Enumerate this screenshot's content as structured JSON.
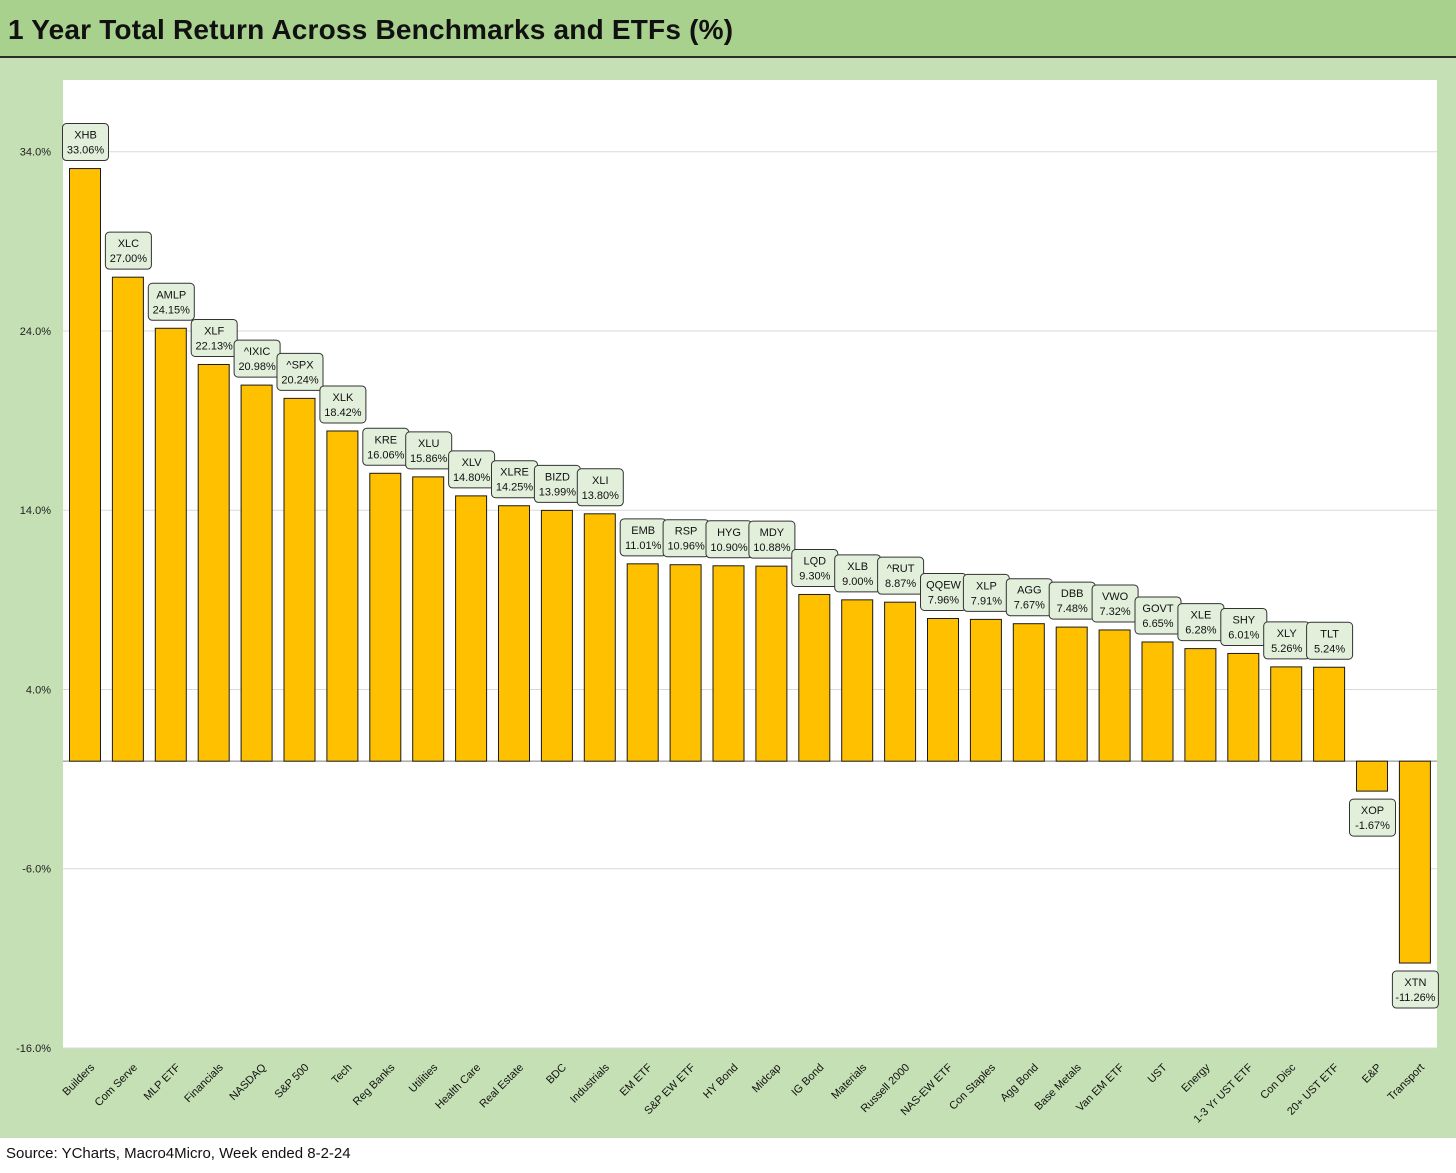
{
  "title": "1 Year Total Return Across Benchmarks and ETFs (%)",
  "source": "Source: YCharts, Macro4Micro, Week ended 8-2-24",
  "colors": {
    "bar": "#ffc000",
    "bar_stroke": "#1a1a1a",
    "label_fill": "#e2efda",
    "frame": "#c5e0b4",
    "title_bar": "#a9d18e",
    "grid": "#d9d9d9"
  },
  "chart_data": {
    "type": "bar",
    "title": "1 Year Total Return Across Benchmarks and ETFs (%)",
    "xlabel": "",
    "ylabel": "",
    "ylim": [
      -16,
      38
    ],
    "yticks": [
      -16,
      -6,
      4,
      14,
      24,
      34
    ],
    "ytick_labels": [
      "-16.0%",
      "-6.0%",
      "4.0%",
      "14.0%",
      "24.0%",
      "34.0%"
    ],
    "grid": true,
    "categories": [
      "Builders",
      "Com Serve",
      "MLP ETF",
      "Financials",
      "NASDAQ",
      "S&P 500",
      "Tech",
      "Reg Banks",
      "Utilities",
      "Health Care",
      "Real Estate",
      "BDC",
      "Industrials",
      "EM ETF",
      "S&P EW ETF",
      "HY Bond",
      "Midcap",
      "IG Bond",
      "Materials",
      "Russell 2000",
      "NAS-EW ETF",
      "Con Staples",
      "Agg Bond",
      "Base Metals",
      "Van EM ETF",
      "UST",
      "Energy",
      "1-3 Yr UST ETF",
      "Con Disc",
      "20+ UST ETF",
      "E&P",
      "Transport"
    ],
    "tickers": [
      "XHB",
      "XLC",
      "AMLP",
      "XLF",
      "^IXIC",
      "^SPX",
      "XLK",
      "KRE",
      "XLU",
      "XLV",
      "XLRE",
      "BIZD",
      "XLI",
      "EMB",
      "RSP",
      "HYG",
      "MDY",
      "LQD",
      "XLB",
      "^RUT",
      "QQEW",
      "XLP",
      "AGG",
      "DBB",
      "VWO",
      "GOVT",
      "XLE",
      "SHY",
      "XLY",
      "TLT",
      "XOP",
      "XTN"
    ],
    "values": [
      33.06,
      27.0,
      24.15,
      22.13,
      20.98,
      20.24,
      18.42,
      16.06,
      15.86,
      14.8,
      14.25,
      13.99,
      13.8,
      11.01,
      10.96,
      10.9,
      10.88,
      9.3,
      9.0,
      8.87,
      7.96,
      7.91,
      7.67,
      7.48,
      7.32,
      6.65,
      6.28,
      6.01,
      5.26,
      5.24,
      -1.67,
      -11.26
    ],
    "value_labels": [
      "33.06%",
      "27.00%",
      "24.15%",
      "22.13%",
      "20.98%",
      "20.24%",
      "18.42%",
      "16.06%",
      "15.86%",
      "14.80%",
      "14.25%",
      "13.99%",
      "13.80%",
      "11.01%",
      "10.96%",
      "10.90%",
      "10.88%",
      "9.30%",
      "9.00%",
      "8.87%",
      "7.96%",
      "7.91%",
      "7.67%",
      "7.48%",
      "7.32%",
      "6.65%",
      "6.28%",
      "6.01%",
      "5.26%",
      "5.24%",
      "-1.67%",
      "-11.26%"
    ]
  }
}
